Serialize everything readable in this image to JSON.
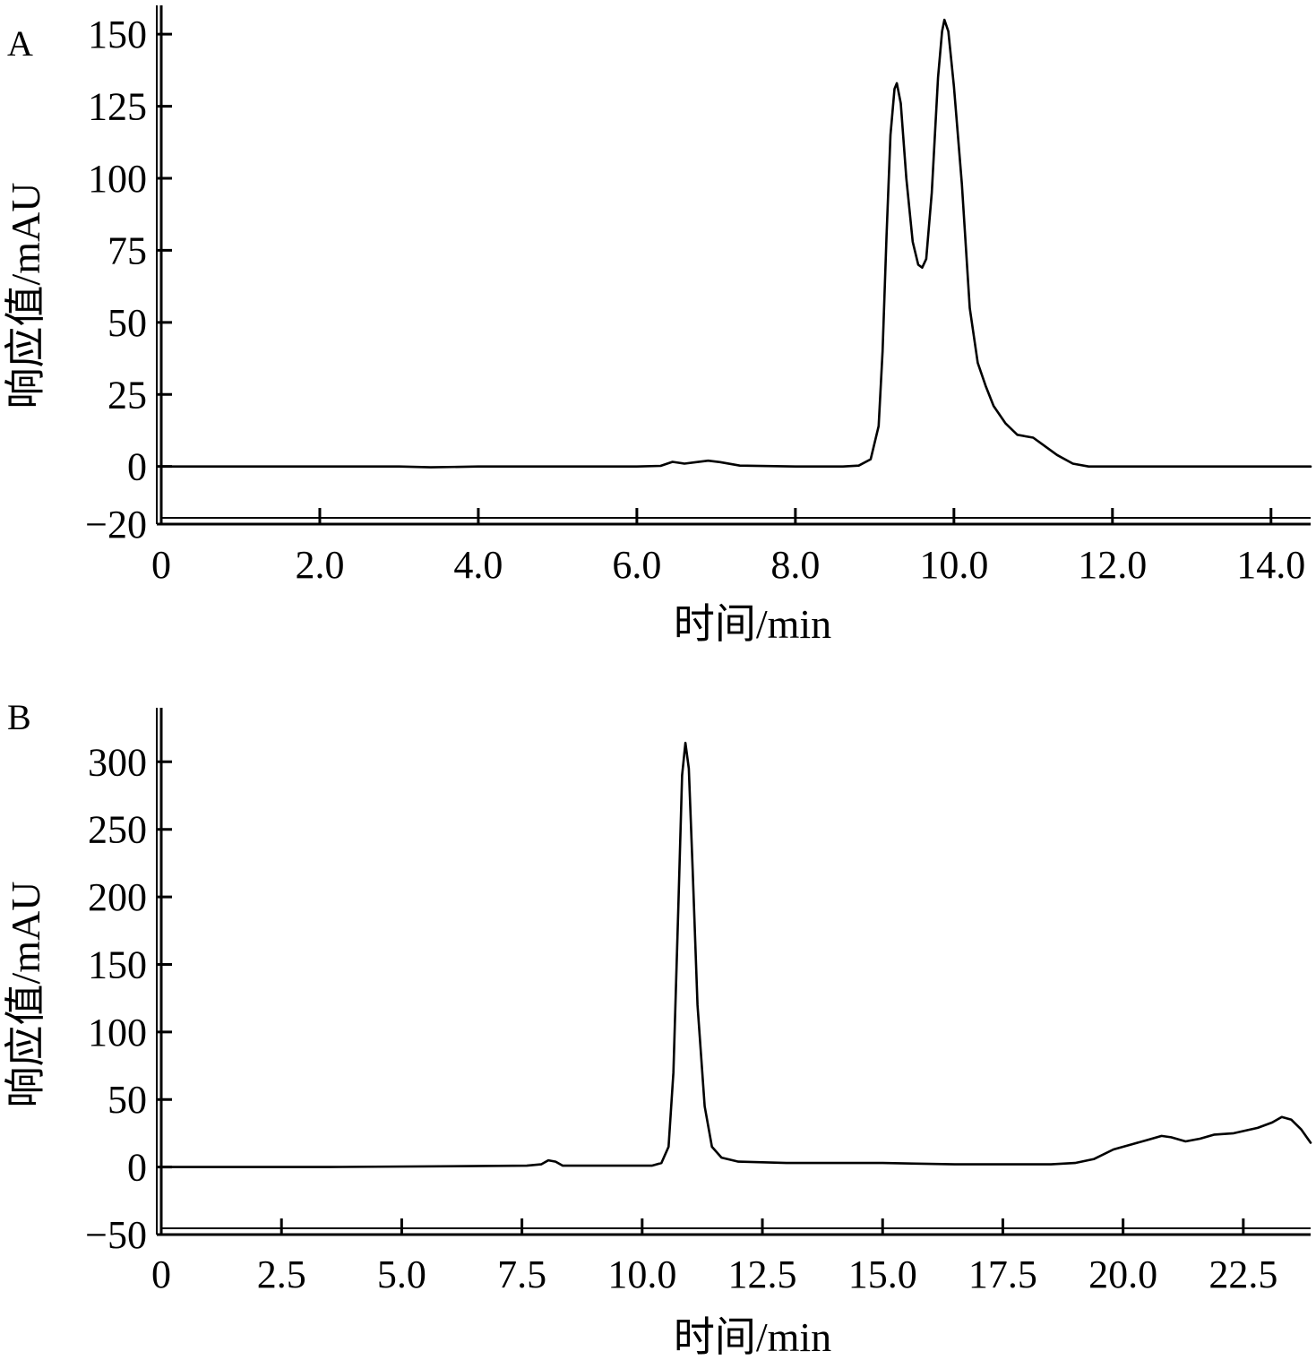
{
  "chart_data": [
    {
      "type": "line",
      "panel_label": "A",
      "title": "",
      "xlabel": "时间/min",
      "ylabel": "响应值/mAU",
      "xlim": [
        0,
        14.5
      ],
      "ylim": [
        -20,
        160
      ],
      "x_ticks": [
        {
          "value": 0,
          "label": "0"
        },
        {
          "value": 2,
          "label": "2.0"
        },
        {
          "value": 4,
          "label": "4.0"
        },
        {
          "value": 6,
          "label": "6.0"
        },
        {
          "value": 8,
          "label": "8.0"
        },
        {
          "value": 10,
          "label": "10.0"
        },
        {
          "value": 12,
          "label": "12.0"
        },
        {
          "value": 14,
          "label": "14.0"
        }
      ],
      "y_ticks": [
        {
          "value": -20,
          "label": "−20"
        },
        {
          "value": 0,
          "label": "0"
        },
        {
          "value": 25,
          "label": "25"
        },
        {
          "value": 50,
          "label": "50"
        },
        {
          "value": 75,
          "label": "75"
        },
        {
          "value": 100,
          "label": "100"
        },
        {
          "value": 125,
          "label": "125"
        },
        {
          "value": 150,
          "label": "150"
        }
      ],
      "grid": false,
      "series": [
        {
          "color": "#000000",
          "points": [
            [
              0,
              0
            ],
            [
              2,
              0
            ],
            [
              3,
              0
            ],
            [
              3.4,
              -0.3
            ],
            [
              4,
              0
            ],
            [
              5,
              0
            ],
            [
              6,
              0
            ],
            [
              6.3,
              0.2
            ],
            [
              6.45,
              1.6
            ],
            [
              6.6,
              1.0
            ],
            [
              6.75,
              1.5
            ],
            [
              6.9,
              2.0
            ],
            [
              7.05,
              1.5
            ],
            [
              7.3,
              0.3
            ],
            [
              8,
              0
            ],
            [
              8.6,
              0
            ],
            [
              8.8,
              0.3
            ],
            [
              8.95,
              2.5
            ],
            [
              9.05,
              14
            ],
            [
              9.1,
              40
            ],
            [
              9.15,
              80
            ],
            [
              9.2,
              115
            ],
            [
              9.25,
              131
            ],
            [
              9.28,
              133
            ],
            [
              9.33,
              126
            ],
            [
              9.4,
              100
            ],
            [
              9.48,
              78
            ],
            [
              9.55,
              70
            ],
            [
              9.6,
              69
            ],
            [
              9.65,
              72
            ],
            [
              9.72,
              95
            ],
            [
              9.8,
              135
            ],
            [
              9.85,
              151
            ],
            [
              9.88,
              155
            ],
            [
              9.93,
              151
            ],
            [
              10,
              132
            ],
            [
              10.1,
              98
            ],
            [
              10.2,
              55
            ],
            [
              10.3,
              36
            ],
            [
              10.4,
              28
            ],
            [
              10.5,
              21
            ],
            [
              10.65,
              15
            ],
            [
              10.8,
              11
            ],
            [
              11.0,
              10
            ],
            [
              11.1,
              8
            ],
            [
              11.3,
              4
            ],
            [
              11.5,
              1
            ],
            [
              11.7,
              0
            ],
            [
              12,
              0
            ],
            [
              13,
              0
            ],
            [
              14,
              0
            ],
            [
              14.5,
              0
            ]
          ]
        }
      ]
    },
    {
      "type": "line",
      "panel_label": "B",
      "title": "",
      "xlabel": "时间/min",
      "ylabel": "响应值/mAU",
      "xlim": [
        0,
        23.9
      ],
      "ylim": [
        -50,
        340
      ],
      "x_ticks": [
        {
          "value": 0,
          "label": "0"
        },
        {
          "value": 2.5,
          "label": "2.5"
        },
        {
          "value": 5,
          "label": "5.0"
        },
        {
          "value": 7.5,
          "label": "7.5"
        },
        {
          "value": 10,
          "label": "10.0"
        },
        {
          "value": 12.5,
          "label": "12.5"
        },
        {
          "value": 15,
          "label": "15.0"
        },
        {
          "value": 17.5,
          "label": "17.5"
        },
        {
          "value": 20,
          "label": "20.0"
        },
        {
          "value": 22.5,
          "label": "22.5"
        }
      ],
      "y_ticks": [
        {
          "value": -50,
          "label": "−50"
        },
        {
          "value": 0,
          "label": "0"
        },
        {
          "value": 50,
          "label": "50"
        },
        {
          "value": 100,
          "label": "100"
        },
        {
          "value": 150,
          "label": "150"
        },
        {
          "value": 200,
          "label": "200"
        },
        {
          "value": 250,
          "label": "250"
        },
        {
          "value": 300,
          "label": "300"
        }
      ],
      "grid": false,
      "series": [
        {
          "color": "#000000",
          "points": [
            [
              0,
              0
            ],
            [
              3.5,
              0
            ],
            [
              7.6,
              1
            ],
            [
              7.9,
              2
            ],
            [
              8.05,
              5
            ],
            [
              8.2,
              4
            ],
            [
              8.35,
              1
            ],
            [
              10.2,
              1
            ],
            [
              10.4,
              3
            ],
            [
              10.55,
              15
            ],
            [
              10.65,
              70
            ],
            [
              10.75,
              190
            ],
            [
              10.83,
              290
            ],
            [
              10.9,
              314
            ],
            [
              10.97,
              295
            ],
            [
              11.05,
              220
            ],
            [
              11.15,
              120
            ],
            [
              11.3,
              45
            ],
            [
              11.45,
              15
            ],
            [
              11.65,
              7
            ],
            [
              12,
              4
            ],
            [
              13,
              3
            ],
            [
              15,
              3
            ],
            [
              16.5,
              2
            ],
            [
              18.5,
              2
            ],
            [
              19.0,
              3
            ],
            [
              19.4,
              6
            ],
            [
              19.8,
              13
            ],
            [
              20.2,
              17
            ],
            [
              20.5,
              20
            ],
            [
              20.8,
              23
            ],
            [
              21.0,
              22
            ],
            [
              21.3,
              19
            ],
            [
              21.6,
              21
            ],
            [
              21.9,
              24
            ],
            [
              22.3,
              25
            ],
            [
              22.8,
              29
            ],
            [
              23.1,
              33
            ],
            [
              23.3,
              37
            ],
            [
              23.5,
              35
            ],
            [
              23.7,
              28
            ],
            [
              23.9,
              18
            ]
          ]
        }
      ]
    }
  ]
}
